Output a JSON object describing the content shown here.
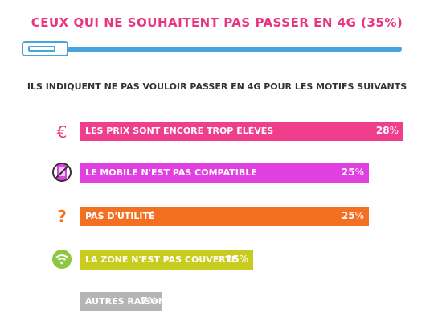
{
  "header": {
    "title": "CEUX QUI NE SOUHAITENT PAS PASSER EN 4G (35%)",
    "subtitle": "ILS INDIQUENT NE PAS VOULOIR PASSER EN 4G POUR LES MOTIFS SUIVANTS"
  },
  "chart_data": {
    "type": "bar",
    "orientation": "horizontal",
    "categories": [
      "LES PRIX SONT ENCORE TROP ÉLÉVÉS",
      "LE MOBILE N'EST PAS COMPATIBLE",
      "PAS D'UTILITÉ",
      "LA ZONE N'EST PAS COUVERTE",
      "AUTRES RAISONS"
    ],
    "values": [
      28,
      25,
      25,
      15,
      7
    ],
    "value_labels": [
      "28",
      "25",
      "25",
      "15",
      "7"
    ],
    "unit": "%",
    "colors": [
      "#ef3e8c",
      "#e040e0",
      "#f36f21",
      "#c8cc1f",
      "#b5b5b5"
    ],
    "icons": [
      "euro-icon",
      "incompatible-phone-icon",
      "question-mark-icon",
      "wifi-icon",
      ""
    ],
    "grid": false,
    "legend": false
  }
}
